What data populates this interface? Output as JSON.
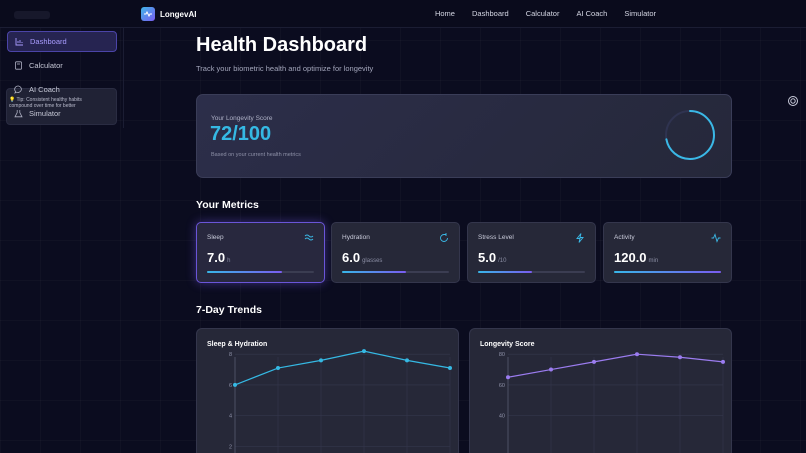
{
  "brand": {
    "name": "LongevAI"
  },
  "nav": {
    "links": [
      "Home",
      "Dashboard",
      "Calculator",
      "AI Coach",
      "Simulator"
    ]
  },
  "sidebar": {
    "items": [
      {
        "label": "Dashboard",
        "icon": "bar-chart-icon",
        "active": true
      },
      {
        "label": "Calculator",
        "icon": "calculator-icon",
        "active": false
      },
      {
        "label": "AI Coach",
        "icon": "chat-bubble-icon",
        "active": false
      },
      {
        "label": "Simulator",
        "icon": "flask-icon",
        "active": false
      }
    ],
    "tip": "💡 Tip: Consistent healthy habits compound over time for better"
  },
  "page": {
    "title": "Health Dashboard",
    "subtitle": "Track your biometric health and optimize for longevity"
  },
  "score": {
    "label": "Your Longevity Score",
    "value": "72/100",
    "progress": 0.72,
    "note": "Based on your current health metrics"
  },
  "metrics_title": "Your Metrics",
  "metrics": [
    {
      "label": "Sleep",
      "value": "7.0",
      "unit": "h",
      "icon": "sleep-waves-icon",
      "fill": 0.7
    },
    {
      "label": "Hydration",
      "value": "6.0",
      "unit": "glasses",
      "icon": "refresh-icon",
      "fill": 0.6
    },
    {
      "label": "Stress Level",
      "value": "5.0",
      "unit": "/10",
      "icon": "lightning-icon",
      "fill": 0.5
    },
    {
      "label": "Activity",
      "value": "120.0",
      "unit": "min",
      "icon": "activity-pulse-icon",
      "fill": 1.0
    }
  ],
  "trends_title": "7-Day Trends",
  "colors": {
    "accent": "#35b9e4",
    "purple": "#7a5cf0",
    "card": "#262838",
    "background": "#0b0c1f"
  },
  "chart_data": [
    {
      "type": "line",
      "title": "Sleep & Hydration",
      "x": [
        1,
        2,
        3,
        4,
        5,
        6
      ],
      "series": [
        {
          "values": [
            6.0,
            7.1,
            7.6,
            8.2,
            7.6,
            7.1
          ],
          "color": "#35b9e4"
        }
      ],
      "yticks": [
        "8",
        "6",
        "4",
        "2"
      ],
      "ylim": [
        0,
        8.6
      ],
      "grid": true
    },
    {
      "type": "line",
      "title": "Longevity Score",
      "x": [
        1,
        2,
        3,
        4,
        5,
        6
      ],
      "series": [
        {
          "values": [
            65,
            70,
            75,
            80,
            78,
            75
          ],
          "color": "#9b7cf0"
        }
      ],
      "yticks": [
        "80",
        "60",
        "40"
      ],
      "ylim": [
        0,
        86
      ],
      "grid": true
    }
  ]
}
